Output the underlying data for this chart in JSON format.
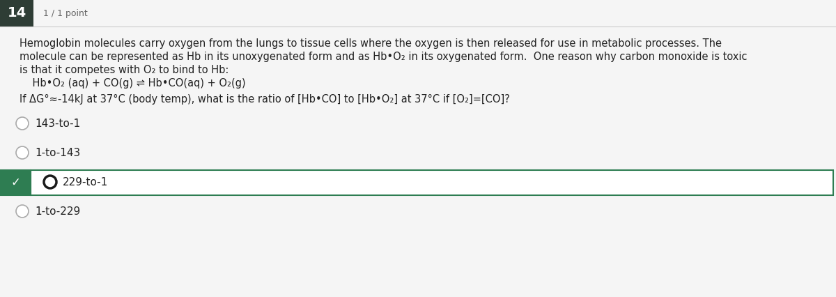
{
  "question_number": "14",
  "points": "1 / 1 point",
  "paragraph_line1": "Hemoglobin molecules carry oxygen from the lungs to tissue cells where the oxygen is then released for use in metabolic processes. The",
  "paragraph_line2": "molecule can be represented as Hb in its unoxygenated form and as Hb•O₂ in its oxygenated form.  One reason why carbon monoxide is toxic",
  "paragraph_line3": "is that it competes with O₂ to bind to Hb:",
  "equation": "    Hb•O₂ (aq) + CO(g) ⇌ Hb•CO(aq) + O₂(g)",
  "question_line": "If ΔG°≈-14kJ at 37°C (body temp), what is the ratio of [Hb•CO] to [Hb•O₂] at 37°C if [O₂]=[CO]?",
  "choices": [
    "143-to-1",
    "1-to-143",
    "229-to-1",
    "1-to-229"
  ],
  "correct_index": 2,
  "bg_color": "#f5f5f5",
  "header_box_bg": "#2e3d35",
  "header_box_text": "#ffffff",
  "header_bg": "#f5f5f5",
  "points_color": "#666666",
  "correct_left_bg": "#2e7d52",
  "correct_right_bg": "#ffffff",
  "correct_border": "#2e7d52",
  "check_color": "#ffffff",
  "text_color": "#222222",
  "radio_border": "#aaaaaa",
  "radio_fill": "#ffffff"
}
